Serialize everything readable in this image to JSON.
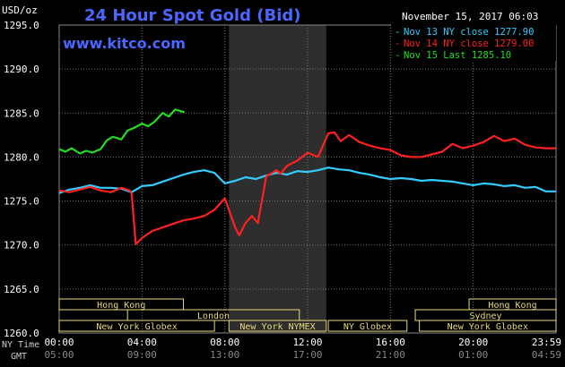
{
  "header": {
    "units": "USD/oz",
    "title": "24 Hour Spot Gold (Bid)",
    "timestamp": "November 15, 2017 06:03",
    "watermark": "www.kitco.com"
  },
  "legend": [
    {
      "label": "Nov 13 NY close 1277.90",
      "color": "#33ccff"
    },
    {
      "label": "Nov 14 NY close 1279.00",
      "color": "#ff2020"
    },
    {
      "label": "Nov 15 Last 1285.10",
      "color": "#22dd22"
    }
  ],
  "colors": {
    "background": "#000000",
    "grid": "#777777",
    "axis_text": "#ffffff",
    "title": "#4a67ff",
    "market_box": "#e8d87a",
    "session_shade": "#2e2e2e"
  },
  "markets": [
    {
      "name": "Hong Kong",
      "start": 0,
      "end": 6.0,
      "row": 0
    },
    {
      "name": "Hong Kong",
      "start": 19.8,
      "end": 24.0,
      "row": 0
    },
    {
      "name": "London",
      "start": 3.3,
      "end": 11.6,
      "row": 1
    },
    {
      "name": "Sydney",
      "start": 17.2,
      "end": 24.0,
      "row": 1
    },
    {
      "name": "New York Globex",
      "start": 0,
      "end": 7.5,
      "row": 2
    },
    {
      "name": "New York NYMEX",
      "start": 8.2,
      "end": 12.9,
      "row": 2
    },
    {
      "name": "NY Globex",
      "start": 13.0,
      "end": 16.8,
      "row": 2
    },
    {
      "name": "New York Globex",
      "start": 17.4,
      "end": 24.0,
      "row": 2
    }
  ],
  "chart_data": {
    "type": "line",
    "ylabel": "USD/oz",
    "ylim": [
      1260,
      1295
    ],
    "yticks": [
      "1295.0",
      "1290.0",
      "1285.0",
      "1280.0",
      "1275.0",
      "1270.0",
      "1265.0",
      "1260.0"
    ],
    "xlim": [
      0,
      24
    ],
    "x_row_labels": [
      "NY Time",
      "GMT"
    ],
    "xticks_ny": [
      "00:00",
      "04:00",
      "08:00",
      "12:00",
      "16:00",
      "20:00",
      "23:59"
    ],
    "xticks_gmt": [
      "05:00",
      "09:00",
      "13:00",
      "17:00",
      "21:00",
      "01:00",
      "04:59"
    ],
    "shaded_session": [
      8.2,
      12.9
    ],
    "series": [
      {
        "name": "Nov 13 NY close 1277.90",
        "color": "#33ccff",
        "x": [
          0,
          0.5,
          1,
          1.5,
          2,
          2.5,
          3,
          3.5,
          4,
          4.5,
          5,
          5.5,
          6,
          6.5,
          7,
          7.5,
          8,
          8.5,
          9,
          9.5,
          10,
          10.5,
          11,
          11.5,
          12,
          12.5,
          13,
          13.5,
          14,
          14.5,
          15,
          15.5,
          16,
          16.5,
          17,
          17.5,
          18,
          18.5,
          19,
          19.5,
          20,
          20.5,
          21,
          21.5,
          22,
          22.5,
          23,
          23.5,
          23.99
        ],
        "y": [
          1275.9,
          1276.3,
          1276.5,
          1276.8,
          1276.5,
          1276.5,
          1276.4,
          1276.0,
          1276.7,
          1276.8,
          1277.2,
          1277.6,
          1278.0,
          1278.3,
          1278.5,
          1278.2,
          1277.0,
          1277.3,
          1277.7,
          1277.5,
          1277.9,
          1278.2,
          1278.0,
          1278.4,
          1278.3,
          1278.5,
          1278.8,
          1278.6,
          1278.5,
          1278.2,
          1278.0,
          1277.7,
          1277.5,
          1277.6,
          1277.5,
          1277.3,
          1277.4,
          1277.3,
          1277.2,
          1277.0,
          1276.8,
          1277.0,
          1276.9,
          1276.7,
          1276.8,
          1276.5,
          1276.6,
          1276.1,
          1276.1
        ]
      },
      {
        "name": "Nov 14 NY close 1279.00",
        "color": "#ff2020",
        "x": [
          0,
          0.5,
          1,
          1.5,
          2,
          2.5,
          3,
          3.4,
          3.5,
          3.7,
          4,
          4.5,
          5,
          5.5,
          6,
          6.5,
          7,
          7.5,
          8,
          8.5,
          8.7,
          9,
          9.3,
          9.6,
          10,
          10.5,
          10.7,
          11,
          11.5,
          12,
          12.5,
          13,
          13.3,
          13.6,
          14,
          14.5,
          15,
          15.5,
          16,
          16.5,
          17,
          17.5,
          18,
          18.5,
          19,
          19.5,
          20,
          20.5,
          21,
          21.5,
          22,
          22.5,
          23,
          23.5,
          23.99
        ],
        "y": [
          1276.2,
          1276.0,
          1276.3,
          1276.6,
          1276.2,
          1276.0,
          1276.5,
          1276.2,
          1275.8,
          1270.1,
          1270.8,
          1271.6,
          1272.0,
          1272.4,
          1272.8,
          1273.0,
          1273.3,
          1274.0,
          1275.3,
          1272.0,
          1271.1,
          1272.5,
          1273.3,
          1272.5,
          1277.8,
          1278.5,
          1278.1,
          1279.0,
          1279.6,
          1280.5,
          1280.0,
          1282.7,
          1282.8,
          1281.8,
          1282.5,
          1281.7,
          1281.3,
          1281.0,
          1280.8,
          1280.2,
          1280.0,
          1280.0,
          1280.3,
          1280.6,
          1281.5,
          1281.0,
          1281.3,
          1281.7,
          1282.4,
          1281.8,
          1282.1,
          1281.4,
          1281.1,
          1281.0,
          1281.0
        ]
      },
      {
        "name": "Nov 15 Last 1285.10",
        "color": "#22dd22",
        "x": [
          0,
          0.3,
          0.6,
          1,
          1.3,
          1.6,
          2,
          2.3,
          2.6,
          3,
          3.3,
          3.6,
          4,
          4.3,
          4.6,
          5,
          5.3,
          5.6,
          6.05
        ],
        "y": [
          1280.9,
          1280.6,
          1281.0,
          1280.4,
          1280.7,
          1280.5,
          1280.9,
          1281.9,
          1282.3,
          1282.0,
          1283.0,
          1283.3,
          1283.8,
          1283.5,
          1284.0,
          1285.0,
          1284.6,
          1285.4,
          1285.1
        ]
      }
    ]
  }
}
